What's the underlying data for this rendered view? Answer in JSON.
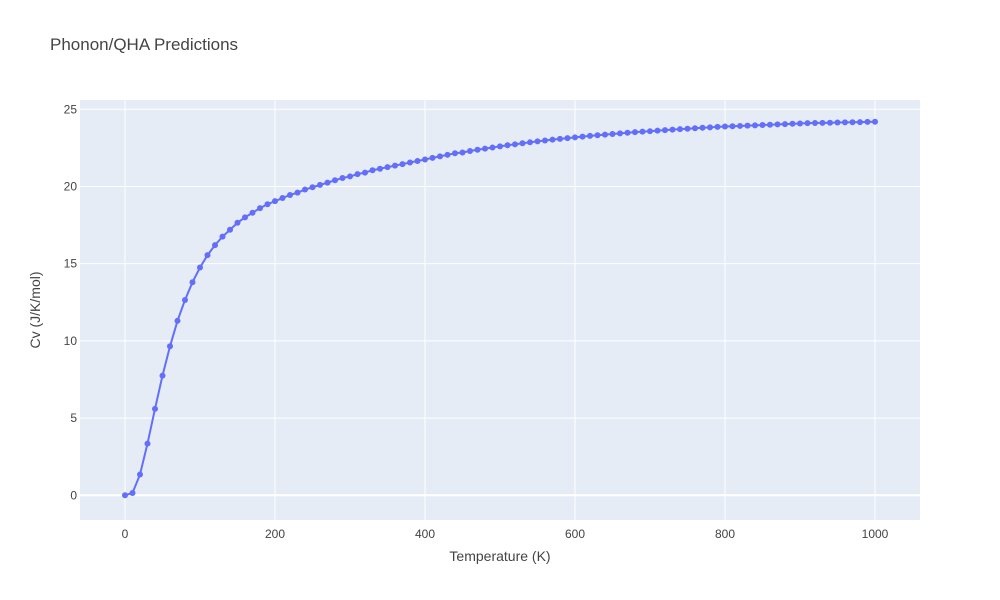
{
  "chart_data": {
    "type": "line",
    "title": "Phonon/QHA Predictions",
    "xlabel": "Temperature (K)",
    "ylabel": "Cv (J/K/mol)",
    "xlim": [
      -60,
      1060
    ],
    "ylim": [
      -1.6,
      25.6
    ],
    "xticks": [
      0,
      200,
      400,
      600,
      800,
      1000
    ],
    "yticks": [
      0,
      5,
      10,
      15,
      20,
      25
    ],
    "grid": true,
    "plot_bgcolor": "#e5ecf6",
    "gridcolor": "#ffffff",
    "font_color": "#444444",
    "series": [
      {
        "color": "#636efa",
        "mode": "lines+markers",
        "x": [
          0,
          10,
          20,
          30,
          40,
          50,
          60,
          70,
          80,
          90,
          100,
          110,
          120,
          130,
          140,
          150,
          160,
          170,
          180,
          190,
          200,
          210,
          220,
          230,
          240,
          250,
          260,
          270,
          280,
          290,
          300,
          310,
          320,
          330,
          340,
          350,
          360,
          370,
          380,
          390,
          400,
          410,
          420,
          430,
          440,
          450,
          460,
          470,
          480,
          490,
          500,
          510,
          520,
          530,
          540,
          550,
          560,
          570,
          580,
          590,
          600,
          610,
          620,
          630,
          640,
          650,
          660,
          670,
          680,
          690,
          700,
          710,
          720,
          730,
          740,
          750,
          760,
          770,
          780,
          790,
          800,
          810,
          820,
          830,
          840,
          850,
          860,
          870,
          880,
          890,
          900,
          910,
          920,
          930,
          940,
          950,
          960,
          970,
          980,
          990,
          1000
        ],
        "y": [
          0,
          0.15,
          1.35,
          3.35,
          5.6,
          7.75,
          9.65,
          11.3,
          12.65,
          13.8,
          14.75,
          15.55,
          16.2,
          16.75,
          17.2,
          17.65,
          18.0,
          18.3,
          18.6,
          18.85,
          19.05,
          19.25,
          19.45,
          19.6,
          19.8,
          19.95,
          20.1,
          20.25,
          20.4,
          20.55,
          20.65,
          20.8,
          20.9,
          21.05,
          21.15,
          21.25,
          21.35,
          21.45,
          21.55,
          21.65,
          21.75,
          21.85,
          21.95,
          22.05,
          22.15,
          22.2,
          22.3,
          22.38,
          22.45,
          22.52,
          22.6,
          22.67,
          22.73,
          22.8,
          22.86,
          22.92,
          22.98,
          23.03,
          23.08,
          23.13,
          23.18,
          23.23,
          23.28,
          23.32,
          23.36,
          23.4,
          23.44,
          23.48,
          23.52,
          23.55,
          23.58,
          23.62,
          23.65,
          23.68,
          23.71,
          23.74,
          23.77,
          23.8,
          23.83,
          23.86,
          23.88,
          23.9,
          23.92,
          23.94,
          23.96,
          23.98,
          24.0,
          24.02,
          24.04,
          24.06,
          24.08,
          24.1,
          24.11,
          24.12,
          24.13,
          24.14,
          24.15,
          24.16,
          24.17,
          24.18,
          24.19
        ]
      }
    ]
  }
}
